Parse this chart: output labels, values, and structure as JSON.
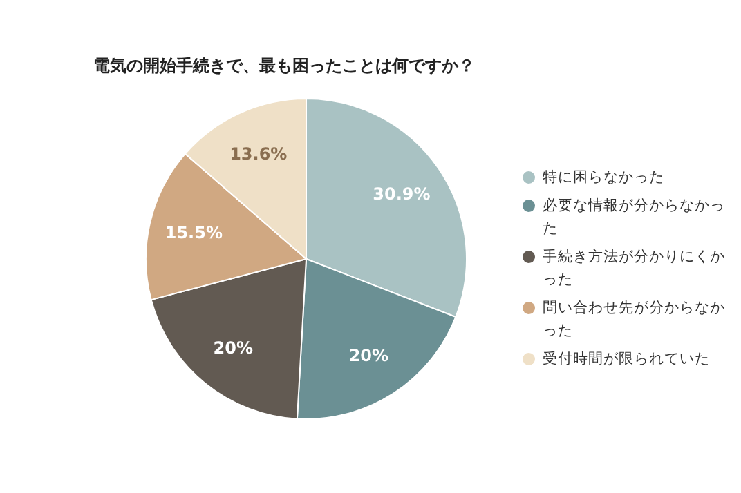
{
  "chart_data": {
    "type": "pie",
    "title": "電気の開始手続きで、最も困ったことは何ですか？",
    "categories": [
      "特に困らなかった",
      "必要な情報が分からなかった",
      "手続き方法が分かりにくかった",
      "問い合わせ先が分からなかった",
      "受付時間が限られていた"
    ],
    "values": [
      30.9,
      20,
      20,
      15.5,
      13.6
    ],
    "colors": [
      "#a9c2c3",
      "#6b9094",
      "#625a52",
      "#d0a882",
      "#efe0c7"
    ],
    "value_labels": [
      "30.9%",
      "20%",
      "20%",
      "15.5%",
      "13.6%"
    ],
    "legend": "right"
  }
}
